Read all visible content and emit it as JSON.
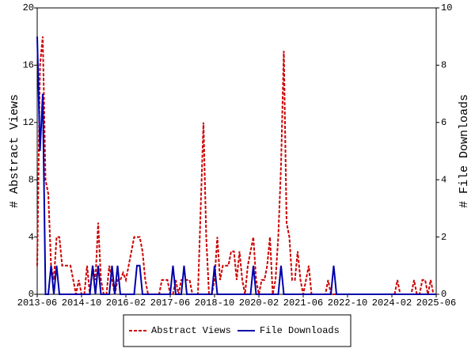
{
  "chart_data": {
    "type": "line",
    "x": [
      "2013-06",
      "2013-07",
      "2013-08",
      "2013-09",
      "2013-10",
      "2013-11",
      "2013-12",
      "2014-01",
      "2014-02",
      "2014-03",
      "2014-04",
      "2014-05",
      "2014-06",
      "2014-07",
      "2014-08",
      "2014-09",
      "2014-10",
      "2014-11",
      "2014-12",
      "2015-01",
      "2015-02",
      "2015-03",
      "2015-04",
      "2015-05",
      "2015-06",
      "2015-07",
      "2015-08",
      "2015-09",
      "2015-10",
      "2015-11",
      "2015-12",
      "2016-01",
      "2016-02",
      "2016-03",
      "2016-04",
      "2016-05",
      "2016-06",
      "2016-07",
      "2016-08",
      "2016-09",
      "2016-10",
      "2016-11",
      "2016-12",
      "2017-01",
      "2017-02",
      "2017-03",
      "2017-04",
      "2017-05",
      "2017-06",
      "2017-07",
      "2017-08",
      "2017-09",
      "2017-10",
      "2017-11",
      "2017-12",
      "2018-01",
      "2018-02",
      "2018-03",
      "2018-04",
      "2018-05",
      "2018-06",
      "2018-07",
      "2018-08",
      "2018-09",
      "2018-10",
      "2018-11",
      "2018-12",
      "2019-01",
      "2019-02",
      "2019-03",
      "2019-04",
      "2019-05",
      "2019-06",
      "2019-07",
      "2019-08",
      "2019-09",
      "2019-10",
      "2019-11",
      "2019-12",
      "2020-01",
      "2020-02",
      "2020-03",
      "2020-04",
      "2020-05",
      "2020-06",
      "2020-07",
      "2020-08",
      "2020-09",
      "2020-10",
      "2020-11",
      "2020-12",
      "2021-01",
      "2021-02",
      "2021-03",
      "2021-04",
      "2021-05",
      "2021-06",
      "2021-07",
      "2021-08",
      "2021-09",
      "2021-10",
      "2021-11",
      "2021-12",
      "2022-01",
      "2022-02",
      "2022-03",
      "2022-04",
      "2022-05",
      "2022-06",
      "2022-07",
      "2022-08",
      "2022-09",
      "2022-10",
      "2022-11",
      "2022-12",
      "2023-01",
      "2023-02",
      "2023-03",
      "2023-04",
      "2023-05",
      "2023-06",
      "2023-07",
      "2023-08",
      "2023-09",
      "2023-10",
      "2023-11",
      "2023-12",
      "2024-01",
      "2024-02",
      "2024-03",
      "2024-04",
      "2024-05",
      "2024-06",
      "2024-07",
      "2024-08",
      "2024-09",
      "2024-10",
      "2024-11",
      "2024-12",
      "2025-01",
      "2025-02",
      "2025-03",
      "2025-04",
      "2025-05",
      "2025-06"
    ],
    "xticks": [
      "2013-06",
      "2014-10",
      "2016-02",
      "2017-06",
      "2018-10",
      "2020-02",
      "2021-06",
      "2022-10",
      "2024-02",
      "2025-06"
    ],
    "ylabel": "# Abstract Views",
    "y2label": "# File Downloads",
    "ylim": [
      0,
      20
    ],
    "yticks": [
      0,
      4,
      8,
      12,
      16,
      20
    ],
    "y2lim": [
      0,
      10
    ],
    "y2ticks": [
      0,
      2,
      4,
      6,
      8,
      10
    ],
    "legend": "bottom",
    "series": [
      {
        "name": "Abstract Views",
        "color": "#cc0000",
        "dash": true,
        "values": [
          2,
          16,
          18,
          8,
          7,
          2,
          1,
          4,
          4,
          2,
          2,
          2,
          2,
          1,
          0,
          1,
          0,
          0,
          2,
          0,
          2,
          1,
          5,
          1,
          0,
          0,
          2,
          1,
          0,
          1,
          1,
          1.5,
          1,
          2,
          3,
          4,
          4,
          4,
          3,
          1,
          0,
          0,
          0,
          0,
          0,
          1,
          1,
          1,
          0,
          0,
          1,
          0,
          1,
          1,
          1,
          1,
          0,
          0,
          0,
          6,
          12,
          4,
          0,
          0,
          1,
          4,
          1,
          2,
          2,
          2,
          3,
          3,
          1,
          3,
          1,
          0,
          2,
          3,
          4,
          1,
          0,
          1,
          1,
          2,
          4,
          0,
          1,
          4,
          9,
          17,
          5,
          4,
          1,
          1,
          3,
          1,
          0,
          1,
          2,
          0,
          0,
          0,
          0,
          0,
          0,
          1,
          0,
          0,
          0,
          0,
          0,
          0,
          0,
          0,
          0,
          0,
          0,
          0,
          0,
          0,
          0,
          0,
          0,
          0,
          0,
          0,
          0,
          0,
          0,
          0,
          1,
          0,
          0,
          0,
          0,
          0,
          1,
          0,
          0,
          1,
          1,
          0,
          1,
          0,
          0
        ]
      },
      {
        "name": "File Downloads",
        "color": "#0000aa",
        "dash": false,
        "axis": "y2",
        "values": [
          9,
          5,
          7,
          0,
          0,
          1,
          0,
          1,
          0,
          0,
          0,
          0,
          0,
          0,
          0,
          0,
          0,
          0,
          0,
          0,
          1,
          0,
          1,
          0,
          0,
          0,
          0,
          1,
          0,
          1,
          0,
          0,
          0,
          0,
          0,
          0,
          1,
          1,
          0,
          0,
          0,
          0,
          0,
          0,
          0,
          0,
          0,
          0,
          0,
          1,
          0,
          0,
          0,
          1,
          0,
          0,
          0,
          0,
          0,
          0,
          0,
          0,
          0,
          0,
          1,
          0,
          0,
          0,
          0,
          0,
          0,
          0,
          0,
          0,
          0,
          0,
          0,
          0,
          1,
          0,
          0,
          0,
          0,
          0,
          0,
          0,
          0,
          0,
          1,
          0,
          0,
          0,
          0,
          0,
          0,
          0,
          0,
          0,
          0,
          0,
          0,
          0,
          0,
          0,
          0,
          0,
          0,
          1,
          0,
          0,
          0,
          0,
          0,
          0,
          0,
          0,
          0,
          0,
          0,
          0,
          0,
          0,
          0,
          0,
          0,
          0,
          0,
          0,
          0,
          0,
          0,
          0,
          0,
          0,
          0,
          0,
          0,
          0,
          0,
          0,
          0,
          0,
          0,
          0,
          0
        ]
      }
    ]
  }
}
